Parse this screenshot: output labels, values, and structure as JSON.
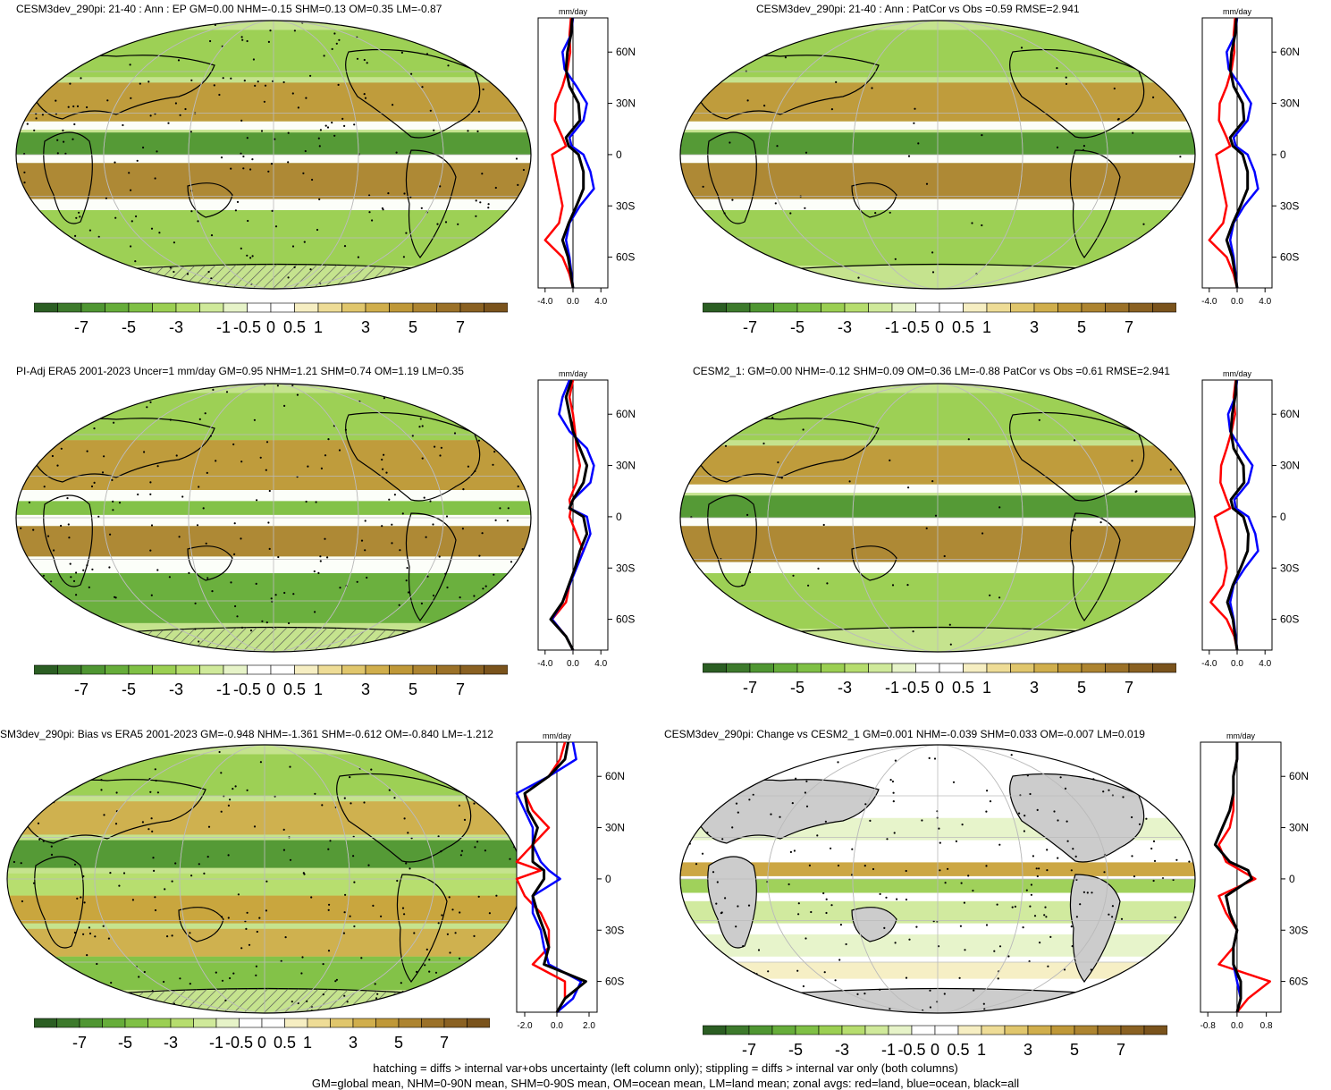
{
  "colors": {
    "land_grey": "#cccccc",
    "ocean_bg": "#ffffff",
    "wet_dark": "#2e6b2a",
    "wet_mid": "#7fbf3f",
    "wet_light": "#c5e38e",
    "dry_light": "#f0e0a0",
    "dry_mid": "#c9a23a",
    "dry_dark": "#9b6a1e",
    "land_line": "red",
    "ocean_line": "blue",
    "all_line": "black"
  },
  "colorbar": {
    "labels": [
      "-7",
      "-5",
      "-3",
      "-1",
      "-0.5",
      "0",
      "0.5",
      "1",
      "3",
      "5",
      "7"
    ],
    "swatches": [
      "#2b5e23",
      "#3d7a2c",
      "#4f9632",
      "#66ad3a",
      "#7fc045",
      "#9bcf52",
      "#b6dd6e",
      "#cfe99a",
      "#e6f3c8",
      "#ffffff",
      "#ffffff",
      "#f6eec2",
      "#eedc96",
      "#e0c66c",
      "#d0ae4c",
      "#bf9838",
      "#ad8430",
      "#9b7128",
      "#8a6122",
      "#7a531c"
    ]
  },
  "panels": [
    {
      "id": "p1",
      "title": "CESM3dev_290pi: 21-40 : Ann : EP GM=0.00 NHM=-0.15 SHM=0.13 OM=0.35 LM=-0.87",
      "axis_unit": "mm/day",
      "lat_labels": [
        "60N",
        "30N",
        "0",
        "30S",
        "60S"
      ],
      "x_ticks": [
        "-4.0",
        "0.0",
        "4.0"
      ],
      "hatching": true
    },
    {
      "id": "p2",
      "title": "CESM3dev_290pi: 21-40 : Ann : PatCor vs Obs =0.59 RMSE=2.941",
      "axis_unit": "mm/day",
      "lat_labels": [
        "60N",
        "30N",
        "0",
        "30S",
        "60S"
      ],
      "x_ticks": [
        "-4.0",
        "0.0",
        "4.0"
      ],
      "hatching": false
    },
    {
      "id": "p3",
      "title": "PI-Adj ERA5 2001-2023 Uncer=1 mm/day GM=0.95 NHM=1.21 SHM=0.74 OM=1.19 LM=0.35",
      "axis_unit": "mm/day",
      "lat_labels": [
        "60N",
        "30N",
        "0",
        "30S",
        "60S"
      ],
      "x_ticks": [
        "-4.0",
        "0.0",
        "4.0"
      ],
      "hatching": true
    },
    {
      "id": "p4",
      "title": "CESM2_1: GM=0.00 NHM=-0.12 SHM=0.09 OM=0.36 LM=-0.88 PatCor vs Obs =0.61 RMSE=2.941",
      "axis_unit": "mm/day",
      "lat_labels": [
        "60N",
        "30N",
        "0",
        "30S",
        "60S"
      ],
      "x_ticks": [
        "-4.0",
        "0.0",
        "4.0"
      ],
      "hatching": false
    },
    {
      "id": "p5",
      "title": "SM3dev_290pi: Bias vs ERA5 2001-2023 GM=-0.948 NHM=-1.361 SHM=-0.612 OM=-0.840 LM=-1.212",
      "axis_unit": "mm/day",
      "lat_labels": [
        "60N",
        "30N",
        "0",
        "30S",
        "60S"
      ],
      "x_ticks": [
        "-2.0",
        "0.0",
        "2.0"
      ],
      "hatching": true
    },
    {
      "id": "p6",
      "title": "CESM3dev_290pi: Change vs CESM2_1 GM=0.001 NHM=-0.039 SHM=0.033 OM=-0.007 LM=0.019",
      "axis_unit": "mm/day",
      "lat_labels": [
        "60N",
        "30N",
        "0",
        "30S",
        "60S"
      ],
      "x_ticks": [
        "-0.8",
        "0.0",
        "0.8"
      ],
      "hatching": false
    }
  ],
  "chart_data": [
    {
      "type": "line",
      "title": "CESM3dev_290pi: 21-40 : Ann : EP GM=0.00 NHM=-0.15 SHM=0.13 OM=0.35 LM=-0.87",
      "xlabel": "mm/day",
      "xlim": [
        -5,
        5
      ],
      "ylim": [
        -78,
        80
      ],
      "lat": [
        80,
        70,
        60,
        50,
        40,
        30,
        20,
        10,
        5,
        0,
        -10,
        -20,
        -30,
        -40,
        -50,
        -60,
        -70,
        -78
      ],
      "series": [
        {
          "name": "land",
          "color": "red",
          "values": [
            -0.3,
            -0.5,
            -0.4,
            -0.8,
            -1.5,
            -2.5,
            -2.6,
            -1.5,
            -1.0,
            -3.0,
            -2.5,
            -2.0,
            -1.5,
            -2.0,
            -4.0,
            -1.5,
            -0.5,
            0.0
          ]
        },
        {
          "name": "ocean",
          "color": "blue",
          "values": [
            0.0,
            -0.3,
            -1.5,
            -1.2,
            0.5,
            2.0,
            1.5,
            -0.5,
            -0.2,
            1.5,
            2.5,
            3.0,
            1.0,
            -0.5,
            -1.0,
            -0.5,
            -0.2,
            0.0
          ]
        },
        {
          "name": "all",
          "color": "black",
          "values": [
            -0.1,
            -0.3,
            -0.8,
            -1.0,
            -0.5,
            0.8,
            1.0,
            -1.0,
            -0.6,
            0.8,
            1.5,
            1.5,
            0.5,
            -0.6,
            -1.5,
            -0.7,
            -0.3,
            0.0
          ]
        }
      ]
    },
    {
      "type": "line",
      "title": "CESM3dev_290pi: 21-40 : Ann : PatCor vs Obs =0.59 RMSE=2.941",
      "xlabel": "mm/day",
      "xlim": [
        -5,
        5
      ],
      "ylim": [
        -78,
        80
      ],
      "lat": [
        80,
        70,
        60,
        50,
        40,
        30,
        20,
        10,
        5,
        0,
        -10,
        -20,
        -30,
        -40,
        -50,
        -60,
        -70,
        -78
      ],
      "series": [
        {
          "name": "land",
          "color": "red",
          "values": [
            -0.3,
            -0.5,
            -0.4,
            -0.8,
            -1.5,
            -2.5,
            -2.6,
            -1.5,
            -1.0,
            -3.0,
            -2.5,
            -2.0,
            -1.5,
            -2.0,
            -4.0,
            -1.5,
            -0.5,
            0.0
          ]
        },
        {
          "name": "ocean",
          "color": "blue",
          "values": [
            0.0,
            -0.3,
            -1.5,
            -1.2,
            0.5,
            2.0,
            1.5,
            -0.5,
            -0.2,
            1.5,
            2.5,
            3.0,
            1.0,
            -0.5,
            -1.0,
            -0.5,
            -0.2,
            0.0
          ]
        },
        {
          "name": "all",
          "color": "black",
          "values": [
            -0.1,
            -0.3,
            -0.8,
            -1.0,
            -0.5,
            0.8,
            1.0,
            -1.0,
            -0.6,
            0.8,
            1.5,
            1.5,
            0.5,
            -0.6,
            -1.5,
            -0.7,
            -0.3,
            0.0
          ]
        }
      ]
    },
    {
      "type": "line",
      "title": "PI-Adj ERA5 2001-2023 Uncer=1 mm/day GM=0.95 NHM=1.21 SHM=0.74 OM=1.19 LM=0.35",
      "xlabel": "mm/day",
      "xlim": [
        -5,
        5
      ],
      "ylim": [
        -78,
        80
      ],
      "lat": [
        80,
        70,
        60,
        50,
        40,
        30,
        20,
        10,
        5,
        0,
        -10,
        -20,
        -30,
        -40,
        -50,
        -60,
        -70,
        -78
      ],
      "series": [
        {
          "name": "land",
          "color": "red",
          "values": [
            0.0,
            -0.5,
            0.0,
            0.3,
            0.5,
            1.0,
            0.5,
            -0.5,
            -0.3,
            -0.5,
            0.5,
            1.5,
            0.3,
            -0.5,
            -1.0,
            -3.0,
            -1.0,
            0.0
          ]
        },
        {
          "name": "ocean",
          "color": "blue",
          "values": [
            -0.5,
            -1.5,
            -2.0,
            -0.5,
            2.0,
            3.0,
            2.5,
            0.0,
            -0.5,
            2.0,
            2.5,
            1.5,
            0.5,
            -0.5,
            -1.5,
            -3.0,
            -1.0,
            0.0
          ]
        },
        {
          "name": "all",
          "color": "black",
          "values": [
            -0.2,
            -1.0,
            -0.5,
            0.0,
            1.0,
            2.0,
            1.5,
            0.0,
            -0.5,
            1.5,
            2.0,
            1.0,
            0.3,
            -0.6,
            -1.5,
            -3.2,
            -1.0,
            0.0
          ]
        }
      ]
    },
    {
      "type": "line",
      "title": "CESM2_1: GM=0.00 NHM=-0.12 SHM=0.09 OM=0.36 LM=-0.88 PatCor vs Obs =0.61 RMSE=2.941",
      "xlabel": "mm/day",
      "xlim": [
        -5,
        5
      ],
      "ylim": [
        -78,
        80
      ],
      "lat": [
        80,
        70,
        60,
        50,
        40,
        30,
        20,
        10,
        5,
        0,
        -10,
        -20,
        -30,
        -40,
        -50,
        -60,
        -70,
        -78
      ],
      "series": [
        {
          "name": "land",
          "color": "red",
          "values": [
            -0.2,
            -0.5,
            -0.3,
            -0.8,
            -1.5,
            -2.3,
            -2.4,
            -1.5,
            -1.0,
            -3.2,
            -2.5,
            -1.8,
            -1.5,
            -2.0,
            -3.8,
            -1.5,
            -0.4,
            0.0
          ]
        },
        {
          "name": "ocean",
          "color": "blue",
          "values": [
            0.0,
            -0.3,
            -1.3,
            -1.0,
            0.5,
            2.2,
            1.6,
            -0.4,
            -0.2,
            1.6,
            2.6,
            3.0,
            1.1,
            -0.5,
            -1.0,
            -0.5,
            -0.2,
            0.0
          ]
        },
        {
          "name": "all",
          "color": "black",
          "values": [
            -0.1,
            -0.3,
            -0.7,
            -0.9,
            -0.5,
            0.9,
            1.0,
            -0.9,
            -0.6,
            0.9,
            1.6,
            1.5,
            0.5,
            -0.6,
            -1.4,
            -0.6,
            -0.3,
            0.0
          ]
        }
      ]
    },
    {
      "type": "line",
      "title": "SM3dev_290pi: Bias vs ERA5 2001-2023 GM=-0.948 NHM=-1.361 SHM=-0.612 OM=-0.840 LM=-1.212",
      "xlabel": "mm/day",
      "xlim": [
        -2.5,
        2.5
      ],
      "ylim": [
        -78,
        80
      ],
      "lat": [
        80,
        70,
        60,
        50,
        40,
        30,
        20,
        10,
        5,
        0,
        -10,
        -20,
        -30,
        -40,
        -50,
        -60,
        -70,
        -78
      ],
      "series": [
        {
          "name": "land",
          "color": "red",
          "values": [
            0.5,
            0.2,
            -0.5,
            -2.0,
            -1.5,
            -0.5,
            -1.5,
            -2.5,
            -1.0,
            -2.5,
            -2.0,
            -1.0,
            -0.5,
            -0.5,
            -1.5,
            0.5,
            0.5,
            0.0
          ]
        },
        {
          "name": "ocean",
          "color": "blue",
          "values": [
            1.0,
            1.2,
            -0.5,
            -2.5,
            -2.0,
            -1.5,
            -1.5,
            -1.0,
            -0.5,
            0.2,
            -1.5,
            -1.5,
            -1.0,
            -0.8,
            -0.5,
            1.5,
            1.0,
            0.0
          ]
        },
        {
          "name": "all",
          "color": "black",
          "values": [
            0.7,
            0.5,
            -0.5,
            -2.0,
            -1.8,
            -1.2,
            -1.5,
            -1.5,
            -0.8,
            -0.8,
            -1.5,
            -1.2,
            -0.8,
            -0.5,
            -0.8,
            1.8,
            0.5,
            0.0
          ]
        }
      ]
    },
    {
      "type": "line",
      "title": "CESM3dev_290pi: Change vs CESM2_1 GM=0.001 NHM=-0.039 SHM=0.033 OM=-0.007 LM=0.019",
      "xlabel": "mm/day",
      "xlim": [
        -1.0,
        1.2
      ],
      "ylim": [
        -78,
        80
      ],
      "lat": [
        80,
        70,
        60,
        50,
        40,
        30,
        20,
        10,
        5,
        0,
        -10,
        -20,
        -30,
        -40,
        -50,
        -60,
        -70,
        -78
      ],
      "series": [
        {
          "name": "land",
          "color": "red",
          "values": [
            0.0,
            0.0,
            -0.1,
            -0.1,
            -0.1,
            -0.2,
            -0.5,
            -0.3,
            0.1,
            0.5,
            -0.5,
            -0.3,
            0.0,
            -0.1,
            -0.5,
            0.9,
            0.3,
            0.0
          ]
        },
        {
          "name": "ocean",
          "color": "blue",
          "values": [
            0.0,
            0.0,
            -0.1,
            -0.1,
            -0.2,
            -0.4,
            -0.6,
            -0.2,
            0.3,
            0.4,
            -0.3,
            -0.2,
            0.0,
            -0.1,
            -0.1,
            0.0,
            0.1,
            0.0
          ]
        },
        {
          "name": "all",
          "color": "black",
          "values": [
            0.0,
            0.0,
            -0.1,
            -0.1,
            -0.2,
            -0.4,
            -0.6,
            -0.2,
            0.3,
            0.4,
            -0.3,
            -0.2,
            0.0,
            -0.1,
            -0.1,
            0.1,
            0.1,
            0.0
          ]
        }
      ]
    }
  ],
  "footer": {
    "line1": "hatching = diffs > internal var+obs uncertainty (left column only); stippling = diffs > internal var only (both columns)",
    "line2": "GM=global mean, NHM=0-90N mean, SHM=0-90S mean, OM=ocean mean, LM=land mean; zonal avgs: red=land, blue=ocean, black=all"
  }
}
